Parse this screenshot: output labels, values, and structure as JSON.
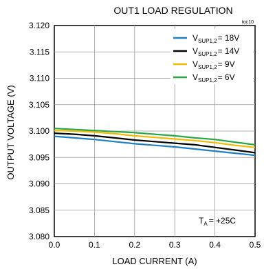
{
  "chart_data": {
    "type": "line",
    "title": "OUT1 LOAD REGULATION",
    "figure_id": "toc10",
    "xlabel": "LOAD CURRENT (A)",
    "ylabel": "OUTPUT VOLTAGE (V)",
    "xlim": [
      0.0,
      0.5
    ],
    "ylim": [
      3.08,
      3.12
    ],
    "x_ticks": [
      "0.0",
      "0.1",
      "0.2",
      "0.3",
      "0.4",
      "0.5"
    ],
    "y_ticks": [
      "3.080",
      "3.085",
      "3.090",
      "3.095",
      "3.100",
      "3.105",
      "3.110",
      "3.115",
      "3.120"
    ],
    "grid": true,
    "legend_position": "top-right",
    "annotation": {
      "base": "T",
      "sub": "A",
      "text": "= +25C"
    },
    "x": [
      0.0,
      0.05,
      0.1,
      0.15,
      0.2,
      0.25,
      0.3,
      0.35,
      0.4,
      0.45,
      0.5
    ],
    "series": [
      {
        "label_base": "V",
        "label_sub": "SUP1,2",
        "label_value": "= 18V",
        "color": "#1e7fc4",
        "values": [
          3.099,
          3.0987,
          3.0984,
          3.098,
          3.0976,
          3.0973,
          3.097,
          3.0966,
          3.0962,
          3.0958,
          3.0954
        ]
      },
      {
        "label_base": "V",
        "label_sub": "SUP1,2",
        "label_value": "= 14V",
        "color": "#000000",
        "values": [
          3.0996,
          3.0994,
          3.0991,
          3.0987,
          3.0983,
          3.098,
          3.0977,
          3.0974,
          3.0969,
          3.0964,
          3.0959
        ]
      },
      {
        "label_base": "V",
        "label_sub": "SUP1,2",
        "label_value": "= 9V",
        "color": "#f5b800",
        "values": [
          3.1001,
          3.1,
          3.0998,
          3.0995,
          3.0991,
          3.0988,
          3.0985,
          3.0982,
          3.0978,
          3.0973,
          3.0969
        ]
      },
      {
        "label_base": "V",
        "label_sub": "SUP1,2",
        "label_value": "= 6V",
        "color": "#27a844",
        "values": [
          3.1005,
          3.1003,
          3.1001,
          3.0999,
          3.0997,
          3.0994,
          3.0991,
          3.0987,
          3.0984,
          3.0979,
          3.0974
        ]
      }
    ]
  }
}
